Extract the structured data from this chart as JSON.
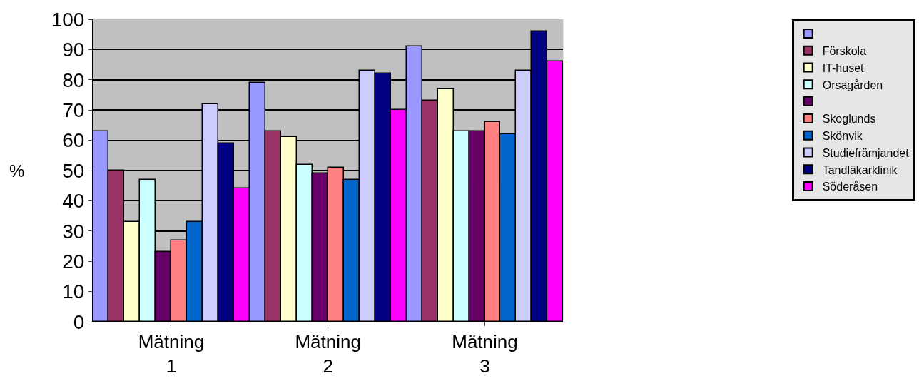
{
  "chart_data": {
    "type": "bar",
    "ylabel": "%",
    "categories": [
      "Mätning 1",
      "Mätning 2",
      "Mätning 3"
    ],
    "series": [
      {
        "color": "#9999ff",
        "values": [
          63,
          79,
          91
        ]
      },
      {
        "name": "Förskola",
        "color": "#993366",
        "values": [
          50,
          63,
          73
        ]
      },
      {
        "name": "IT-huset",
        "color": "#ffffcc",
        "values": [
          33,
          61,
          77
        ]
      },
      {
        "name": "Orsagården",
        "color": "#ccffff",
        "values": [
          47,
          52,
          63
        ]
      },
      {
        "color": "#660066",
        "values": [
          23,
          49,
          63
        ]
      },
      {
        "name": "Skoglunds",
        "color": "#ff8080",
        "values": [
          27,
          51,
          66
        ]
      },
      {
        "name": "Skönvik",
        "color": "#0066cc",
        "values": [
          33,
          47,
          62
        ]
      },
      {
        "name": "Studiefrämjandet",
        "color": "#ccccff",
        "values": [
          72,
          83,
          83
        ]
      },
      {
        "name": "Tandläkarklinik",
        "color": "#000080",
        "values": [
          59,
          82,
          96
        ]
      },
      {
        "name": "Söderåsen",
        "color": "#ff00ff",
        "values": [
          44,
          70,
          86
        ]
      }
    ],
    "ylim": [
      0,
      100
    ],
    "yticks": [
      0,
      10,
      20,
      30,
      40,
      50,
      60,
      70,
      80,
      90,
      100
    ],
    "grid": "y",
    "legend": "right"
  }
}
